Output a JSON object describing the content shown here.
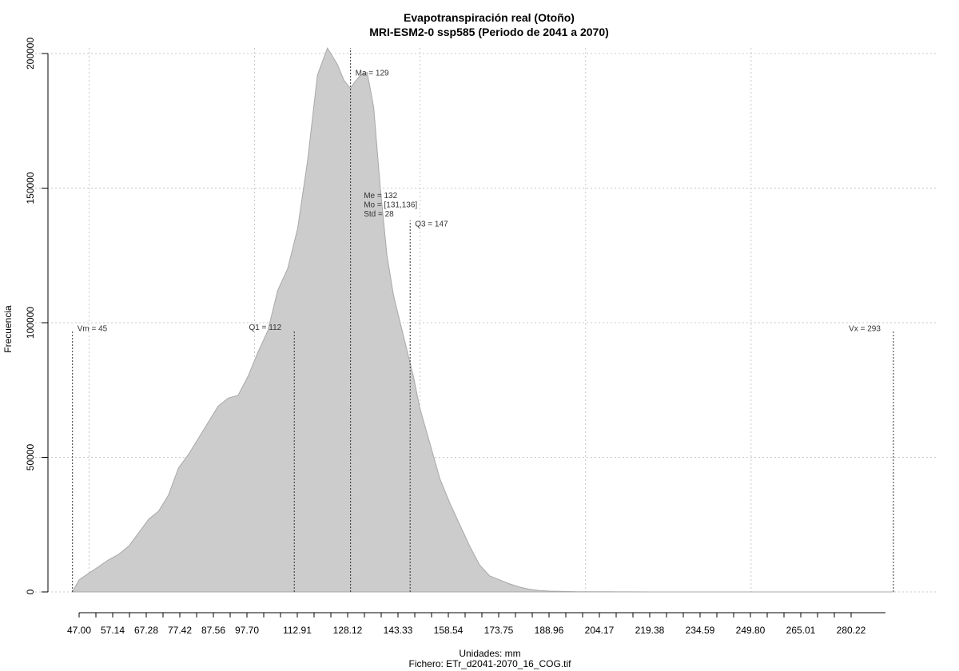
{
  "chart_data": {
    "type": "area",
    "title": "Evapotranspiración real (Otoño)",
    "subtitle": "MRI-ESM2-0 ssp585 (Periodo de 2041 a 2070)",
    "xlabel": "Unidades: mm",
    "footer": "Fichero: ETr_d2041-2070_16_COG.tif",
    "ylabel": "Frecuencia",
    "xlim": [
      45,
      295
    ],
    "ylim": [
      0,
      200000
    ],
    "grid": true,
    "y_ticks": [
      0,
      50000,
      100000,
      150000,
      200000
    ],
    "y_tick_labels": [
      "0",
      "50000",
      "100000",
      "150000",
      "200000"
    ],
    "x_ticks": [
      47.0,
      57.14,
      67.28,
      77.42,
      87.56,
      97.7,
      112.91,
      128.12,
      143.33,
      158.54,
      173.75,
      188.96,
      204.17,
      219.38,
      234.59,
      249.8,
      265.01,
      280.22
    ],
    "x_tick_labels": [
      "47.00",
      "57.14",
      "67.28",
      "77.42",
      "87.56",
      "97.70",
      "112.91",
      "128.12",
      "143.33",
      "158.54",
      "173.75",
      "188.96",
      "204.17",
      "219.38",
      "234.59",
      "249.80",
      "265.01",
      "280.22"
    ],
    "x_minor_ticks": [
      47.0,
      52.07,
      57.14,
      62.21,
      67.28,
      72.35,
      77.42,
      82.49,
      87.56,
      92.63,
      97.7,
      102.77,
      107.84,
      112.91,
      117.98,
      123.05,
      128.12,
      133.19,
      138.26,
      143.33,
      148.4,
      153.47,
      158.54,
      163.61,
      168.68,
      173.75,
      178.82,
      183.89,
      188.96,
      194.03,
      199.1,
      204.17,
      209.24,
      214.31,
      219.38,
      224.45,
      229.52,
      234.59,
      239.66,
      244.73,
      249.8,
      254.87,
      259.94,
      265.01,
      270.08,
      275.15,
      280.22
    ],
    "x_grid": [
      50,
      100,
      150,
      200,
      250
    ],
    "y_grid": [
      0,
      50000,
      100000,
      150000,
      200000
    ],
    "series": [
      {
        "color": "#cccccc",
        "x": [
          45,
          47,
          50,
          53,
          56,
          59,
          62,
          65,
          68,
          71,
          74,
          77,
          80,
          83,
          86,
          89,
          92,
          95,
          98,
          101,
          104,
          107,
          110,
          113,
          116,
          119,
          122,
          125,
          127,
          129,
          130,
          132,
          134,
          136,
          138,
          140,
          142,
          144,
          146,
          148,
          150,
          153,
          156,
          159,
          162,
          165,
          168,
          171,
          174,
          177,
          180,
          183,
          186,
          189,
          192,
          195,
          198,
          201,
          204,
          207,
          210,
          215,
          220,
          230,
          240,
          250,
          260,
          270,
          280,
          290,
          293
        ],
        "y": [
          0,
          4500,
          7000,
          9500,
          12000,
          14000,
          17000,
          22000,
          27000,
          30000,
          36000,
          46000,
          51000,
          57000,
          63000,
          69000,
          72000,
          73000,
          80000,
          89000,
          97000,
          112000,
          120000,
          135000,
          160000,
          192000,
          202000,
          196000,
          190000,
          187000,
          189000,
          192000,
          193000,
          180000,
          150000,
          125000,
          110000,
          100000,
          90000,
          80000,
          68000,
          55000,
          42000,
          33000,
          25000,
          17000,
          10000,
          6000,
          4500,
          3000,
          1800,
          1000,
          500,
          300,
          200,
          150,
          100,
          100,
          80,
          50,
          30,
          20,
          10,
          5,
          0,
          0,
          0,
          0,
          0,
          0,
          0
        ]
      }
    ],
    "markers": [
      {
        "x": 45,
        "label": "Vm = 45",
        "top": 97000,
        "label_y": 98000,
        "label_side": "right",
        "style": "dotted"
      },
      {
        "x": 112,
        "label": "Q1 = 112",
        "top": 97000,
        "label_y": 98500,
        "label_side": "left",
        "style": "dotted"
      },
      {
        "x": 129,
        "label": "Ma = 129",
        "top": 202000,
        "label_y": 193000,
        "label_side": "right",
        "style": "dotted"
      },
      {
        "x": 147,
        "label": "Q3 = 147",
        "top": 138000,
        "label_y": 137000,
        "label_side": "right",
        "style": "dotted"
      },
      {
        "x": 293,
        "label": "Vx = 293",
        "top": 97000,
        "label_y": 98000,
        "label_side": "left",
        "style": "dotted"
      }
    ],
    "stats_box": {
      "x": 133,
      "y": 160000,
      "lines": [
        "Me = 132",
        "Mo = [131,136]",
        "Std = 28"
      ]
    }
  }
}
